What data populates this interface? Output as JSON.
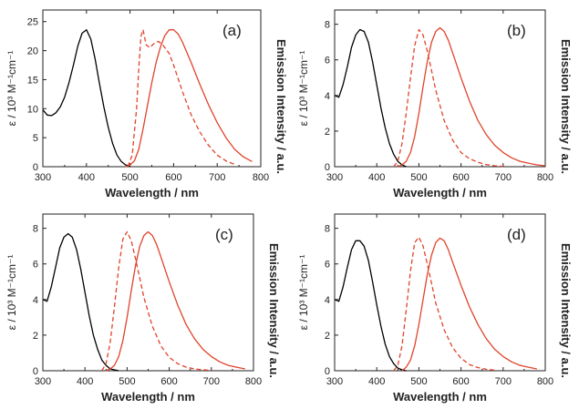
{
  "chart_data": [
    {
      "type": "line",
      "panel_label": "(a)",
      "xlabel": "Wavelength / nm",
      "ylabel_left": "ε / 10³ M⁻¹cm⁻¹",
      "ylabel_right": "Emission Intensity / a.u.",
      "xlim": [
        300,
        800
      ],
      "ylim": [
        0,
        27
      ],
      "x_ticks": [
        300,
        400,
        500,
        600,
        700,
        800
      ],
      "y_ticks": [
        0,
        5,
        10,
        15,
        20,
        25
      ],
      "grid": false,
      "series": [
        {
          "style": "solid",
          "color": "#000000",
          "x": [
            300,
            310,
            320,
            330,
            340,
            350,
            360,
            370,
            380,
            390,
            400,
            410,
            420,
            430,
            440,
            450,
            460,
            470,
            480,
            490,
            500
          ],
          "y": [
            9.8,
            8.9,
            8.8,
            9.3,
            10.3,
            12.0,
            14.5,
            17.5,
            20.7,
            23.0,
            23.6,
            22.0,
            18.5,
            14.3,
            10.3,
            6.8,
            4.0,
            2.0,
            0.9,
            0.3,
            0.1
          ]
        },
        {
          "style": "solid",
          "color": "#e0432b",
          "x": [
            490,
            500,
            510,
            520,
            530,
            540,
            550,
            560,
            570,
            580,
            590,
            600,
            610,
            620,
            640,
            660,
            680,
            700,
            720,
            740,
            760,
            780
          ],
          "y": [
            0,
            0.3,
            1.0,
            3.0,
            6.5,
            10.5,
            14.5,
            18.0,
            20.7,
            22.6,
            23.6,
            23.6,
            22.9,
            21.5,
            18.0,
            14.2,
            10.7,
            7.6,
            5.0,
            3.0,
            1.7,
            0.9
          ]
        },
        {
          "style": "dashed",
          "color": "#e0432b",
          "x": [
            495,
            505,
            515,
            520,
            525,
            530,
            537,
            545,
            555,
            565,
            575,
            590,
            600,
            620,
            640,
            660,
            680,
            700,
            720,
            740
          ],
          "y": [
            0,
            2.0,
            10.0,
            17.0,
            22.5,
            23.6,
            21.0,
            20.5,
            21.2,
            21.6,
            21.0,
            19.5,
            17.5,
            13.0,
            9.0,
            6.0,
            3.7,
            2.0,
            1.0,
            0.4
          ]
        }
      ]
    },
    {
      "type": "line",
      "panel_label": "(b)",
      "xlabel": "Wavelength / nm",
      "ylabel_left": "ε / 10³ M⁻¹cm⁻¹",
      "ylabel_right": "Emission Intensity / a.u.",
      "xlim": [
        300,
        800
      ],
      "ylim": [
        0,
        8.8
      ],
      "x_ticks": [
        300,
        400,
        500,
        600,
        700,
        800
      ],
      "y_ticks": [
        0,
        2,
        4,
        6,
        8
      ],
      "grid": false,
      "series": [
        {
          "style": "solid",
          "color": "#000000",
          "x": [
            300,
            310,
            320,
            330,
            340,
            350,
            360,
            370,
            380,
            390,
            400,
            410,
            420,
            430,
            440,
            450,
            460,
            470
          ],
          "y": [
            4.0,
            3.9,
            4.6,
            5.6,
            6.7,
            7.4,
            7.7,
            7.6,
            7.0,
            5.9,
            4.6,
            3.3,
            2.2,
            1.3,
            0.7,
            0.3,
            0.1,
            0.0
          ]
        },
        {
          "style": "solid",
          "color": "#e0432b",
          "x": [
            450,
            460,
            470,
            480,
            490,
            500,
            510,
            520,
            530,
            540,
            550,
            560,
            570,
            580,
            600,
            620,
            640,
            660,
            680,
            700,
            720,
            740,
            760,
            780,
            800
          ],
          "y": [
            0,
            0.1,
            0.3,
            0.8,
            1.7,
            3.0,
            4.5,
            5.9,
            7.0,
            7.6,
            7.8,
            7.6,
            7.1,
            6.4,
            5.0,
            3.7,
            2.6,
            1.8,
            1.2,
            0.8,
            0.5,
            0.3,
            0.2,
            0.1,
            0.05
          ]
        },
        {
          "style": "dashed",
          "color": "#e0432b",
          "x": [
            440,
            450,
            460,
            470,
            480,
            490,
            500,
            510,
            520,
            530,
            540,
            560,
            580,
            600,
            620,
            640,
            660,
            680,
            700
          ],
          "y": [
            0,
            0.3,
            1.3,
            3.0,
            5.0,
            6.8,
            7.7,
            7.4,
            6.5,
            5.4,
            4.3,
            2.6,
            1.5,
            0.8,
            0.45,
            0.25,
            0.12,
            0.05,
            0.02
          ]
        }
      ]
    },
    {
      "type": "line",
      "panel_label": "(c)",
      "xlabel": "Wavelength / nm",
      "ylabel_left": "ε / 10³ M⁻¹cm⁻¹",
      "ylabel_right": "Emission Intensity / a.u.",
      "xlim": [
        300,
        800
      ],
      "ylim": [
        0,
        8.8
      ],
      "x_ticks": [
        300,
        400,
        500,
        600,
        700,
        800
      ],
      "y_ticks": [
        0,
        2,
        4,
        6,
        8
      ],
      "grid": false,
      "series": [
        {
          "style": "solid",
          "color": "#000000",
          "x": [
            300,
            310,
            320,
            330,
            340,
            350,
            360,
            370,
            380,
            390,
            400,
            410,
            420,
            430,
            440,
            450,
            460,
            470,
            480
          ],
          "y": [
            4.0,
            3.9,
            4.7,
            5.8,
            6.9,
            7.5,
            7.7,
            7.5,
            6.8,
            5.7,
            4.4,
            3.1,
            2.0,
            1.2,
            0.6,
            0.3,
            0.1,
            0.05,
            0.0
          ]
        },
        {
          "style": "solid",
          "color": "#e0432b",
          "x": [
            450,
            460,
            470,
            480,
            490,
            500,
            510,
            520,
            530,
            540,
            550,
            560,
            570,
            580,
            600,
            620,
            640,
            660,
            680,
            700,
            720,
            740,
            760,
            780
          ],
          "y": [
            0,
            0.1,
            0.3,
            0.8,
            1.7,
            3.0,
            4.5,
            5.9,
            7.0,
            7.6,
            7.8,
            7.6,
            7.1,
            6.4,
            5.0,
            3.7,
            2.6,
            1.8,
            1.2,
            0.8,
            0.5,
            0.3,
            0.2,
            0.1
          ]
        },
        {
          "style": "dashed",
          "color": "#e0432b",
          "x": [
            440,
            450,
            460,
            470,
            480,
            490,
            500,
            510,
            520,
            530,
            540,
            560,
            580,
            600,
            620,
            640,
            660,
            680,
            700
          ],
          "y": [
            0,
            0.4,
            1.6,
            3.6,
            5.8,
            7.4,
            7.8,
            7.3,
            6.3,
            5.2,
            4.1,
            2.5,
            1.4,
            0.75,
            0.4,
            0.2,
            0.1,
            0.05,
            0.02
          ]
        }
      ]
    },
    {
      "type": "line",
      "panel_label": "(d)",
      "xlabel": "Wavelength / nm",
      "ylabel_left": "ε / 10³ M⁻¹cm⁻¹",
      "ylabel_right": "Emission Intensity / a.u.",
      "xlim": [
        300,
        800
      ],
      "ylim": [
        0,
        8.8
      ],
      "x_ticks": [
        300,
        400,
        500,
        600,
        700,
        800
      ],
      "y_ticks": [
        0,
        2,
        4,
        6,
        8
      ],
      "grid": false,
      "series": [
        {
          "style": "solid",
          "color": "#000000",
          "x": [
            300,
            310,
            320,
            330,
            340,
            350,
            360,
            370,
            380,
            390,
            400,
            410,
            420,
            430,
            440,
            450,
            460,
            470
          ],
          "y": [
            4.0,
            3.9,
            4.7,
            5.8,
            6.8,
            7.3,
            7.3,
            7.0,
            6.2,
            5.0,
            3.7,
            2.5,
            1.5,
            0.8,
            0.4,
            0.15,
            0.05,
            0.0
          ]
        },
        {
          "style": "solid",
          "color": "#e0432b",
          "x": [
            460,
            470,
            480,
            490,
            500,
            510,
            520,
            530,
            540,
            550,
            560,
            570,
            580,
            600,
            620,
            640,
            660,
            680,
            700,
            720,
            740,
            760,
            780
          ],
          "y": [
            0,
            0.2,
            0.6,
            1.4,
            2.6,
            4.0,
            5.4,
            6.5,
            7.2,
            7.45,
            7.3,
            6.8,
            6.1,
            4.8,
            3.6,
            2.6,
            1.8,
            1.2,
            0.8,
            0.5,
            0.3,
            0.2,
            0.1
          ]
        },
        {
          "style": "dashed",
          "color": "#e0432b",
          "x": [
            440,
            450,
            460,
            470,
            480,
            490,
            500,
            510,
            520,
            530,
            540,
            560,
            580,
            600,
            620,
            640,
            660,
            680
          ],
          "y": [
            0,
            0.3,
            1.4,
            3.4,
            5.6,
            7.2,
            7.5,
            7.0,
            6.0,
            4.9,
            3.8,
            2.3,
            1.3,
            0.7,
            0.35,
            0.18,
            0.08,
            0.03
          ]
        }
      ]
    }
  ]
}
